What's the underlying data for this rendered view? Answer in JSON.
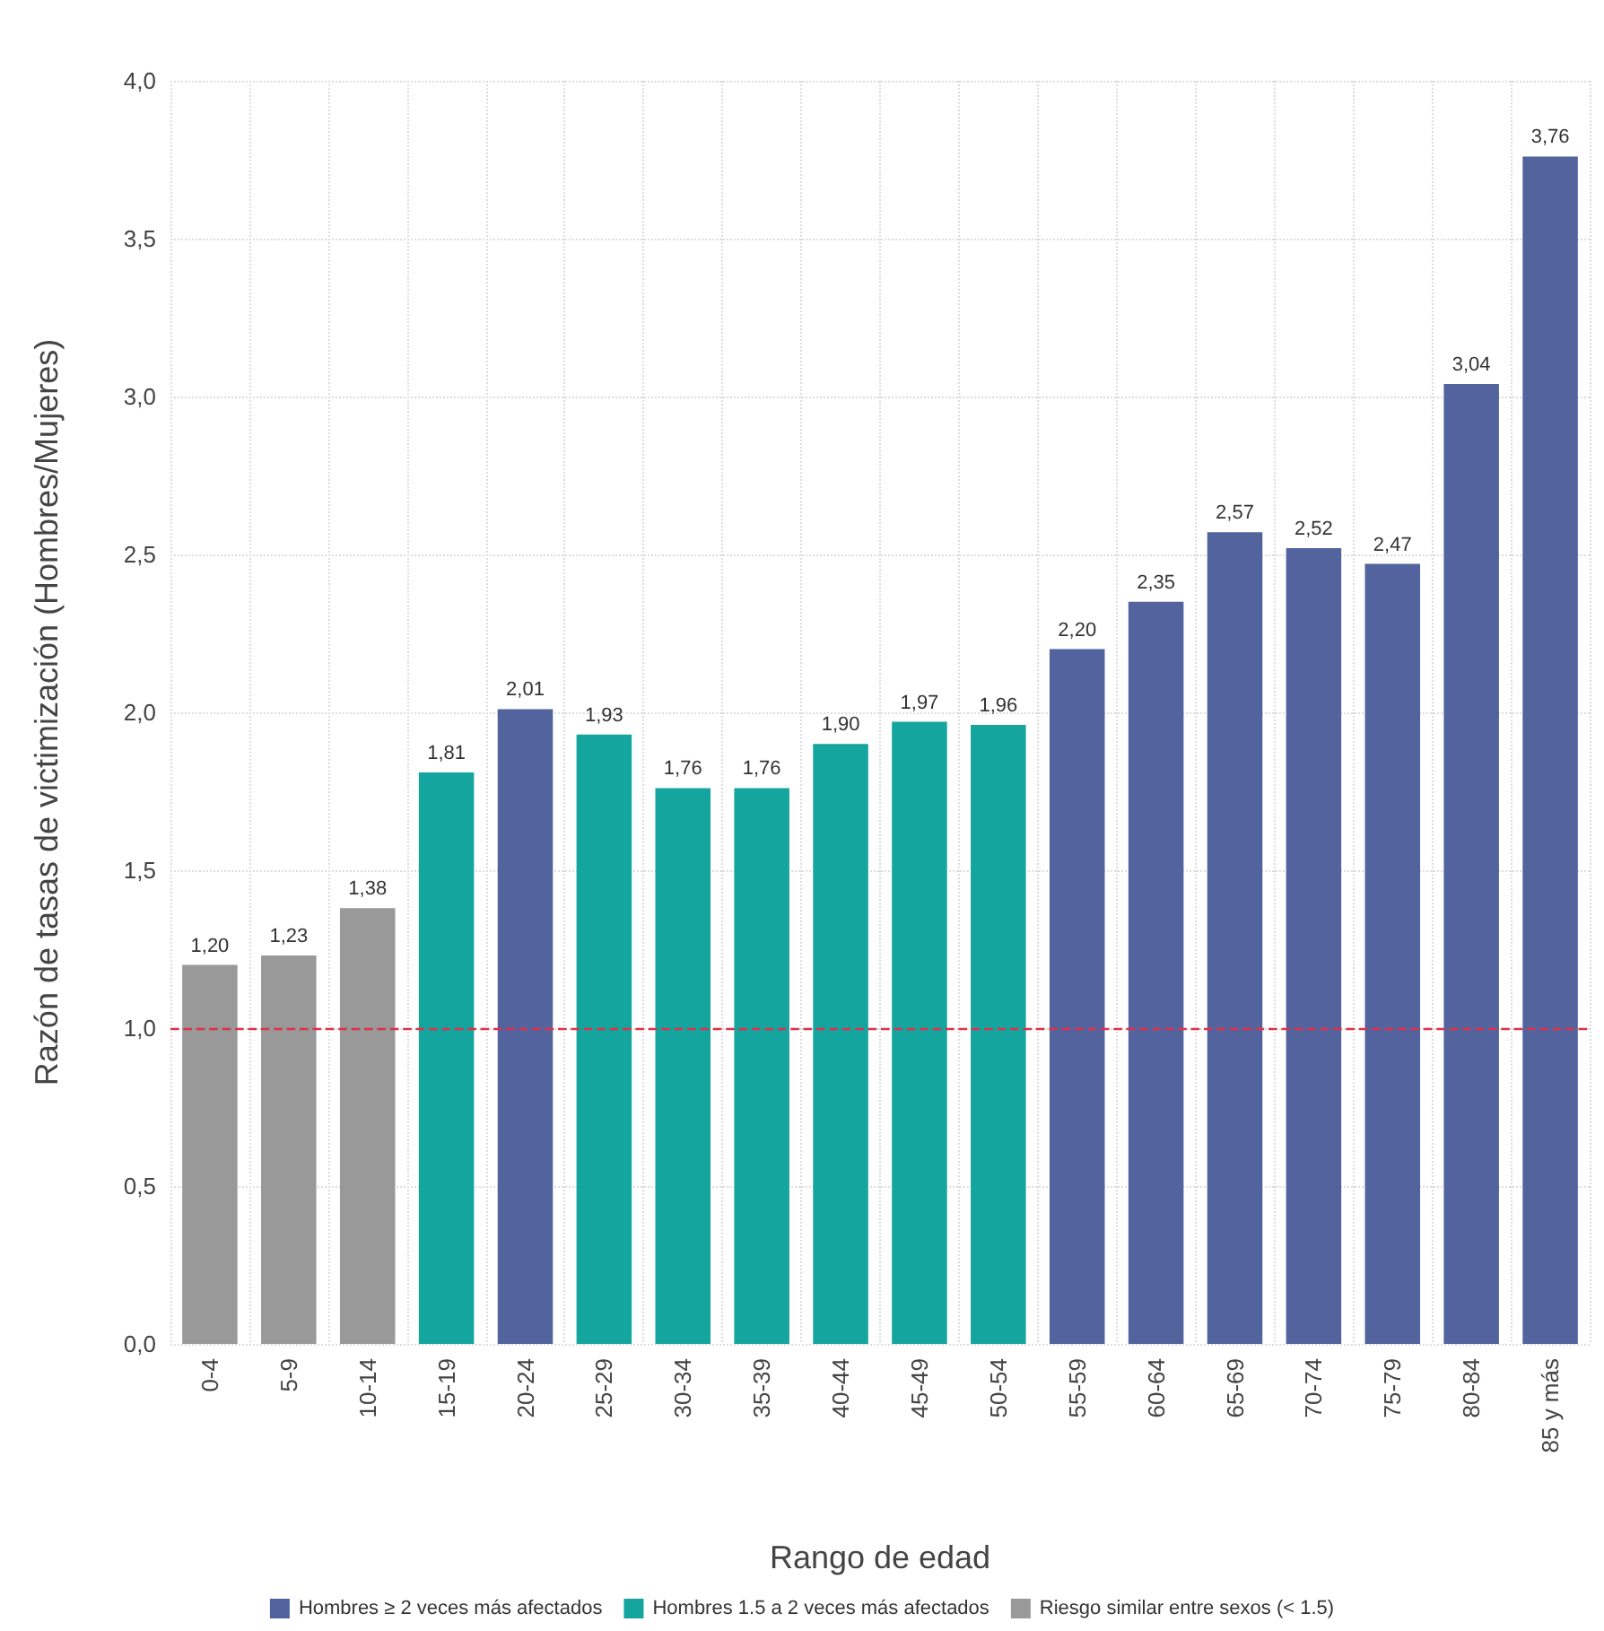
{
  "chart_data": {
    "type": "bar",
    "xlabel": "Rango de edad",
    "ylabel": "Razón de tasas de victimización (Hombres/Mujeres)",
    "categories": [
      "0-4",
      "5-9",
      "10-14",
      "15-19",
      "20-24",
      "25-29",
      "30-34",
      "35-39",
      "40-44",
      "45-49",
      "50-54",
      "55-59",
      "60-64",
      "65-69",
      "70-74",
      "75-79",
      "80-84",
      "85 y más"
    ],
    "stacked": true,
    "series": [
      {
        "name": "Hombres ≥ 2 veces más afectados",
        "color": "#52639e",
        "values": [
          null,
          null,
          null,
          null,
          2.01,
          null,
          null,
          null,
          null,
          null,
          null,
          2.2,
          2.35,
          2.57,
          2.52,
          2.47,
          3.04,
          3.76
        ],
        "value_labels": [
          null,
          null,
          null,
          null,
          "2,01",
          null,
          null,
          null,
          null,
          null,
          null,
          "2,20",
          "2,35",
          "2,57",
          "2,52",
          "2,47",
          "3,04",
          "3,76"
        ]
      },
      {
        "name": "Hombres 1.5 a 2 veces más afectados",
        "color": "#14a59f",
        "values": [
          null,
          null,
          null,
          1.81,
          null,
          1.93,
          1.76,
          1.76,
          1.9,
          1.97,
          1.96,
          null,
          null,
          null,
          null,
          null,
          null,
          null
        ],
        "value_labels": [
          null,
          null,
          null,
          "1,81",
          null,
          "1,93",
          "1,76",
          "1,76",
          "1,90",
          "1,97",
          "1,96",
          null,
          null,
          null,
          null,
          null,
          null,
          null
        ]
      },
      {
        "name": "Riesgo similar entre sexos (< 1.5)",
        "color": "#999999",
        "values": [
          1.2,
          1.23,
          1.38,
          null,
          null,
          null,
          null,
          null,
          null,
          null,
          null,
          null,
          null,
          null,
          null,
          null,
          null,
          null
        ],
        "value_labels": [
          "1,20",
          "1,23",
          "1,38",
          null,
          null,
          null,
          null,
          null,
          null,
          null,
          null,
          null,
          null,
          null,
          null,
          null,
          null,
          null
        ]
      }
    ],
    "ylim": [
      0,
      4
    ],
    "yticks": [
      {
        "value": 0,
        "label": "0,0"
      },
      {
        "value": 0.5,
        "label": "0,5"
      },
      {
        "value": 1,
        "label": "1,0"
      },
      {
        "value": 1.5,
        "label": "1,5"
      },
      {
        "value": 2,
        "label": "2,0"
      },
      {
        "value": 2.5,
        "label": "2,5"
      },
      {
        "value": 3,
        "label": "3,0"
      },
      {
        "value": 3.5,
        "label": "3,5"
      },
      {
        "value": 4,
        "label": "4,0"
      }
    ],
    "ref_lines": [
      {
        "axis": "y",
        "value": 1,
        "color": "#e0304a",
        "line_style": "dashed"
      }
    ],
    "grid": true,
    "legend": "bottom"
  }
}
